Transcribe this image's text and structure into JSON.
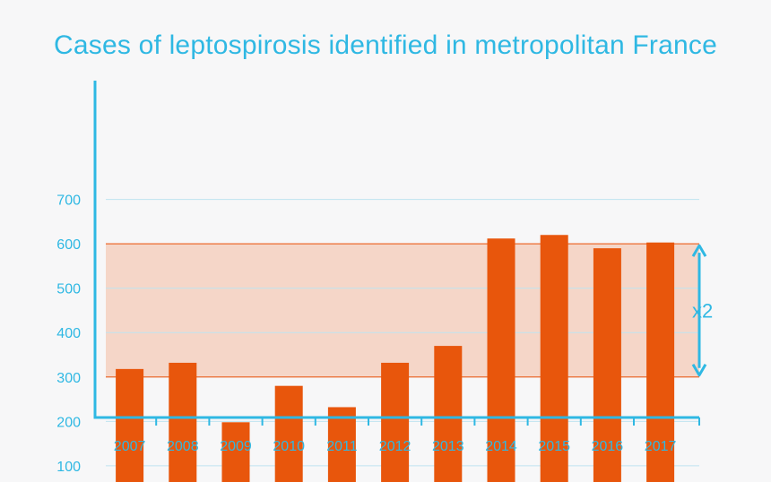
{
  "colors": {
    "background": "#f7f7f8",
    "accent": "#2fb8e3",
    "bar": "#e8560c",
    "band_fill": "#f5d6c8",
    "band_line": "#ef6a2c",
    "grid": "#bfe3f0"
  },
  "chart_data": {
    "type": "bar",
    "title": "Cases of leptospirosis identified in metropolitan France",
    "categories": [
      "2007",
      "2008",
      "2009",
      "2010",
      "2011",
      "2012",
      "2013",
      "2014",
      "2015",
      "2016",
      "2017"
    ],
    "values": [
      318,
      332,
      198,
      280,
      232,
      332,
      370,
      612,
      620,
      590,
      603
    ],
    "ylim": [
      30,
      700
    ],
    "yticks": [
      100,
      200,
      300,
      400,
      500,
      600,
      700
    ],
    "grid": true,
    "band": {
      "from": 300,
      "to": 600
    },
    "annotation": "x2"
  }
}
